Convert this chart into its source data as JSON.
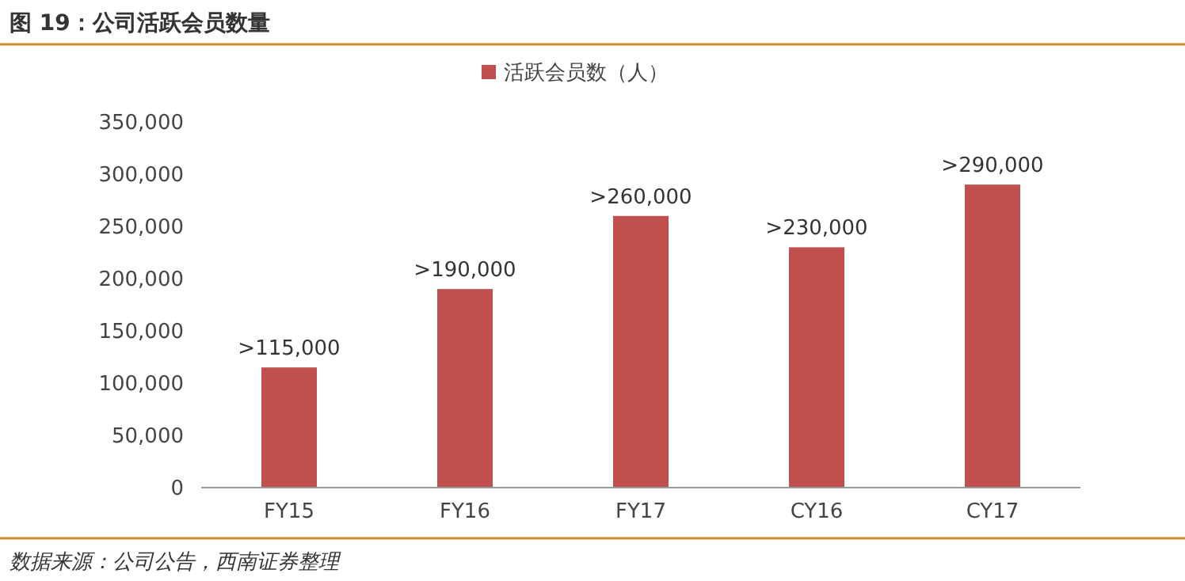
{
  "chart_data": {
    "type": "bar",
    "title": "图 19：公司活跃会员数量",
    "categories": [
      "FY15",
      "FY16",
      "FY17",
      "CY16",
      "CY17"
    ],
    "series": [
      {
        "name": "活跃会员数（人）",
        "color": "#c0504d",
        "values": [
          115000,
          190000,
          260000,
          230000,
          290000
        ],
        "value_labels": [
          ">115,000",
          ">190,000",
          ">260,000",
          ">230,000",
          ">290,000"
        ]
      }
    ],
    "ylim": [
      0,
      350000
    ],
    "yticks": [
      {
        "value": 0,
        "label": "0"
      },
      {
        "value": 50000,
        "label": "50,000"
      },
      {
        "value": 100000,
        "label": "100,000"
      },
      {
        "value": 150000,
        "label": "150,000"
      },
      {
        "value": 200000,
        "label": "200,000"
      },
      {
        "value": 250000,
        "label": "250,000"
      },
      {
        "value": 300000,
        "label": "300,000"
      },
      {
        "value": 350000,
        "label": "350,000"
      }
    ],
    "legend": "top",
    "grid": false,
    "annotations": [
      "数据来源：公司公告，西南证券整理"
    ]
  }
}
